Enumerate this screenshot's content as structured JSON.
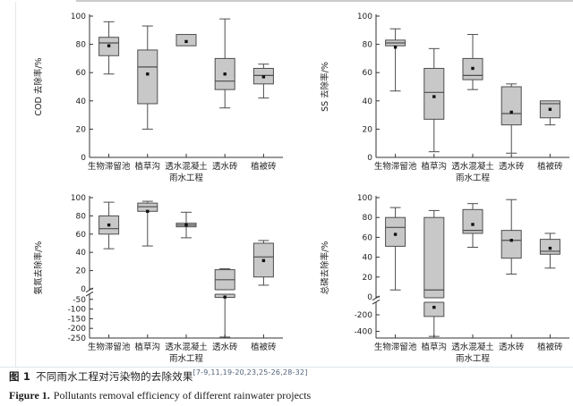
{
  "figure": {
    "caption_zh_prefix": "图 1",
    "caption_zh": "不同雨水工程对污染物的去除效果",
    "caption_zh_refs": "[7-9,11,19-20,23,25-26,28-32]",
    "caption_en_prefix": "Figure 1.",
    "caption_en": "Pollutants removal efficiency of different rainwater projects"
  },
  "colors": {
    "box_fill": "#c8c8c8",
    "box_stroke": "#4d4d4d",
    "axis": "#333333",
    "mean_marker": "#111111",
    "refs_text": "#53637a"
  },
  "chart_data": [
    {
      "type": "box",
      "ylabel": "COD 去除率/%",
      "xlabel": "雨水工程",
      "categories": [
        "生物滞留池",
        "植草沟",
        "透水混凝土",
        "透水砖",
        "植被砖"
      ],
      "segments": [
        {
          "range": [
            0,
            100
          ],
          "ticks": [
            0,
            20,
            40,
            60,
            80,
            100
          ],
          "frac": 1
        }
      ],
      "boxes": [
        {
          "lo": 59,
          "q1": 72,
          "med": 81,
          "q3": 85,
          "hi": 96,
          "mean": 79
        },
        {
          "lo": 20,
          "q1": 38,
          "med": 64,
          "q3": 76,
          "hi": 93,
          "mean": 59
        },
        {
          "lo": null,
          "q1": 79,
          "med": null,
          "q3": 87,
          "hi": null,
          "mean": 82
        },
        {
          "lo": 35,
          "q1": 48,
          "med": 54,
          "q3": 70,
          "hi": 98,
          "mean": 59
        },
        {
          "lo": 42,
          "q1": 52,
          "med": 58,
          "q3": 63,
          "hi": 66,
          "mean": 57
        }
      ]
    },
    {
      "type": "box",
      "ylabel": "SS 去除率/%",
      "xlabel": "雨水工程",
      "categories": [
        "生物滞留池",
        "植草沟",
        "透水混凝土",
        "透水砖",
        "植被砖"
      ],
      "segments": [
        {
          "range": [
            0,
            100
          ],
          "ticks": [
            0,
            20,
            40,
            60,
            80,
            100
          ],
          "frac": 1
        }
      ],
      "boxes": [
        {
          "lo": 47,
          "q1": 79,
          "med": 81,
          "q3": 83,
          "hi": 91,
          "mean": 78
        },
        {
          "lo": 4,
          "q1": 27,
          "med": 46,
          "q3": 63,
          "hi": 77,
          "mean": 43
        },
        {
          "lo": 48,
          "q1": 55,
          "med": 58,
          "q3": 70,
          "hi": 87,
          "mean": 63
        },
        {
          "lo": 3,
          "q1": 23,
          "med": 31,
          "q3": 50,
          "hi": 52,
          "mean": 32
        },
        {
          "lo": 23,
          "q1": 28,
          "med": 38,
          "q3": 40,
          "hi": null,
          "mean": 34
        }
      ]
    },
    {
      "type": "box",
      "ylabel": "氨氮去除率/%",
      "xlabel": "雨水工程",
      "categories": [
        "生物滞留池",
        "植草沟",
        "透水混凝土",
        "透水砖",
        "植被砖"
      ],
      "segments": [
        {
          "range": [
            0,
            100
          ],
          "ticks": [
            0,
            20,
            40,
            60,
            80,
            100
          ],
          "frac": 0.68
        },
        {
          "range": [
            -250,
            -28
          ],
          "ticks": [
            -50,
            -100,
            -150,
            -200,
            -250
          ],
          "frac": 0.32
        }
      ],
      "boxes": [
        {
          "lo": 44,
          "q1": 60,
          "med": 66,
          "q3": 80,
          "hi": 95,
          "mean": 70
        },
        {
          "lo": 47,
          "q1": 85,
          "med": 90,
          "q3": 94,
          "hi": 96,
          "mean": 85
        },
        {
          "lo": 56,
          "q1": 68,
          "med": 70,
          "q3": 72,
          "hi": 84,
          "mean": 70
        },
        {
          "lo": -245,
          "q1": -40,
          "med": 10,
          "q3": 21,
          "hi": 22,
          "mean": -38
        },
        {
          "lo": 4,
          "q1": 13,
          "med": 35,
          "q3": 50,
          "hi": 53,
          "mean": 31
        }
      ]
    },
    {
      "type": "box",
      "ylabel": "总磷去除率/%",
      "xlabel": "雨水工程",
      "categories": [
        "生物滞留池",
        "植草沟",
        "透水混凝土",
        "透水砖",
        "植被砖"
      ],
      "segments": [
        {
          "range": [
            0,
            100
          ],
          "ticks": [
            0,
            20,
            40,
            60,
            80,
            100
          ],
          "frac": 0.74
        },
        {
          "range": [
            -480,
            -60
          ],
          "ticks": [
            -200,
            -400
          ],
          "frac": 0.26
        }
      ],
      "boxes": [
        {
          "lo": 7,
          "q1": 51,
          "med": 70,
          "q3": 80,
          "hi": 90,
          "mean": 63
        },
        {
          "lo": -460,
          "q1": -220,
          "med": 7,
          "q3": 80,
          "hi": 87,
          "mean": -110
        },
        {
          "lo": 50,
          "q1": 64,
          "med": 67,
          "q3": 88,
          "hi": 94,
          "mean": 73
        },
        {
          "lo": 23,
          "q1": 39,
          "med": 57,
          "q3": 67,
          "hi": 98,
          "mean": 57
        },
        {
          "lo": 29,
          "q1": 43,
          "med": 46,
          "q3": 58,
          "hi": 64,
          "mean": 49
        }
      ]
    }
  ]
}
